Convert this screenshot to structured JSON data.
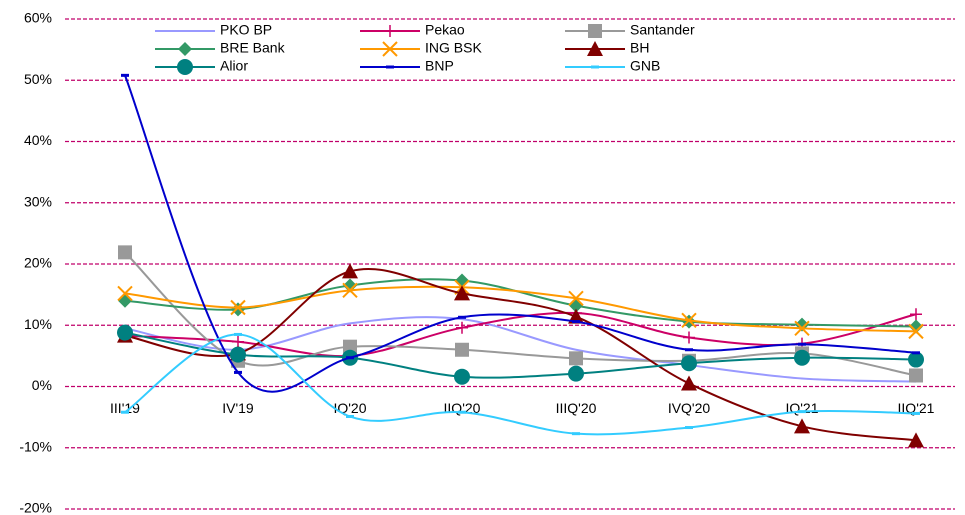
{
  "chart_data": {
    "type": "line",
    "categories": [
      "III'19",
      "IV'19",
      "IQ'20",
      "IIQ'20",
      "IIIQ'20",
      "IVQ'20",
      "IQ'21",
      "IIQ'21"
    ],
    "ylim": [
      -20,
      60
    ],
    "yticks": [
      {
        "value": -20,
        "label": "-20%"
      },
      {
        "value": -10,
        "label": "-10%"
      },
      {
        "value": 0,
        "label": "0%"
      },
      {
        "value": 10,
        "label": "10%"
      },
      {
        "value": 20,
        "label": "20%"
      },
      {
        "value": 30,
        "label": "30%"
      },
      {
        "value": 40,
        "label": "40%"
      },
      {
        "value": 50,
        "label": "50%"
      },
      {
        "value": 60,
        "label": "60%"
      }
    ],
    "grid": true,
    "grid_color": "#c0006a",
    "smooth": true,
    "legend": "top",
    "series": [
      {
        "name": "PKO BP",
        "color": "#9999ff",
        "marker": "none",
        "values": [
          9.5,
          6,
          10.3,
          11,
          6,
          3.5,
          1.3,
          0.8
        ]
      },
      {
        "name": "Pekao",
        "color": "#cc0066",
        "marker": "plus",
        "values": [
          8.3,
          7.3,
          5,
          9.6,
          12,
          8,
          7,
          11.8
        ]
      },
      {
        "name": "Santander",
        "color": "#999999",
        "marker": "square",
        "values": [
          21.9,
          4.2,
          6.5,
          6,
          4.6,
          4.2,
          5.4,
          1.8
        ]
      },
      {
        "name": "BRE Bank",
        "color": "#339966",
        "marker": "diamond",
        "values": [
          14,
          12.6,
          16.5,
          17.3,
          13.2,
          10.6,
          10.1,
          9.8
        ]
      },
      {
        "name": "ING BSK",
        "color": "#ff9900",
        "marker": "x",
        "values": [
          15.2,
          12.9,
          15.7,
          16.2,
          14.4,
          10.8,
          9.5,
          9
        ]
      },
      {
        "name": "BH",
        "color": "#800000",
        "marker": "triangle",
        "values": [
          8.3,
          5.4,
          18.8,
          15.2,
          11.4,
          0.5,
          -6.5,
          -8.8
        ]
      },
      {
        "name": "Alior",
        "color": "#008080",
        "marker": "circle",
        "values": [
          8.8,
          5.2,
          4.7,
          1.6,
          2.1,
          3.8,
          4.7,
          4.4
        ]
      },
      {
        "name": "BNP",
        "color": "#0000cc",
        "marker": "dash",
        "values": [
          50.8,
          2.3,
          4.7,
          11.3,
          10.6,
          6,
          6.9,
          5.5
        ]
      },
      {
        "name": "GNB",
        "color": "#33ccff",
        "marker": "dash",
        "values": [
          -4.2,
          8.5,
          -4.9,
          -4.2,
          -7.7,
          -6.7,
          -4.1,
          -4.4
        ]
      }
    ]
  }
}
